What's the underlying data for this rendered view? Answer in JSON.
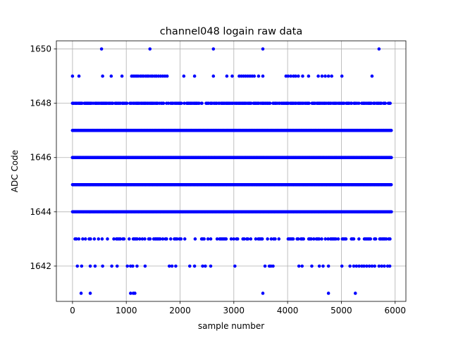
{
  "chart_data": {
    "type": "scatter",
    "title": "channel048 logain raw data",
    "xlabel": "sample number",
    "ylabel": "ADC Code",
    "xlim": [
      -300,
      6200
    ],
    "ylim": [
      1640.7,
      1650.3
    ],
    "xticks": [
      0,
      1000,
      2000,
      3000,
      4000,
      5000,
      6000
    ],
    "yticks": [
      1642,
      1644,
      1646,
      1648,
      1650
    ],
    "grid": true,
    "marker_color": "#0000ff",
    "n_samples": 5930,
    "rows": [
      {
        "y": 1650,
        "x": [
          540,
          1440,
          2620,
          3540,
          5700
        ]
      },
      {
        "y": 1649,
        "x": [
          0,
          120,
          560,
          720,
          920,
          1100,
          1130,
          1160,
          1190,
          1220,
          1260,
          1290,
          1320,
          1360,
          1390,
          1420,
          1460,
          1490,
          1530,
          1560,
          1600,
          1640,
          1680,
          1720,
          1760,
          2070,
          2270,
          2620,
          2870,
          2970,
          3100,
          3140,
          3180,
          3220,
          3260,
          3300,
          3340,
          3380,
          3460,
          3540,
          3970,
          4010,
          4060,
          4110,
          4150,
          4200,
          4280,
          4390,
          4570,
          4640,
          4700,
          4760,
          4820,
          5010,
          5570
        ]
      },
      {
        "y": 1648,
        "x": "dense"
      },
      {
        "y": 1647,
        "x": "dense"
      },
      {
        "y": 1646,
        "x": "dense"
      },
      {
        "y": 1645,
        "x": "dense"
      },
      {
        "y": 1644,
        "x": "dense"
      },
      {
        "y": 1643,
        "x": "dense-sparse"
      },
      {
        "y": 1642,
        "x": [
          90,
          170,
          330,
          420,
          560,
          730,
          830,
          1020,
          1080,
          1120,
          1200,
          1350,
          1800,
          1850,
          1920,
          2180,
          2270,
          2420,
          2470,
          2570,
          3020,
          3580,
          3660,
          3690,
          3730,
          4210,
          4270,
          4450,
          4590,
          4660,
          4760,
          5010,
          5160,
          5230,
          5280,
          5330,
          5380,
          5420,
          5470,
          5520,
          5570,
          5620,
          5700,
          5750,
          5800,
          5860,
          5900
        ]
      },
      {
        "y": 1641,
        "x": [
          160,
          330,
          1080,
          1130,
          1160,
          3540,
          4760,
          5260
        ]
      }
    ]
  }
}
